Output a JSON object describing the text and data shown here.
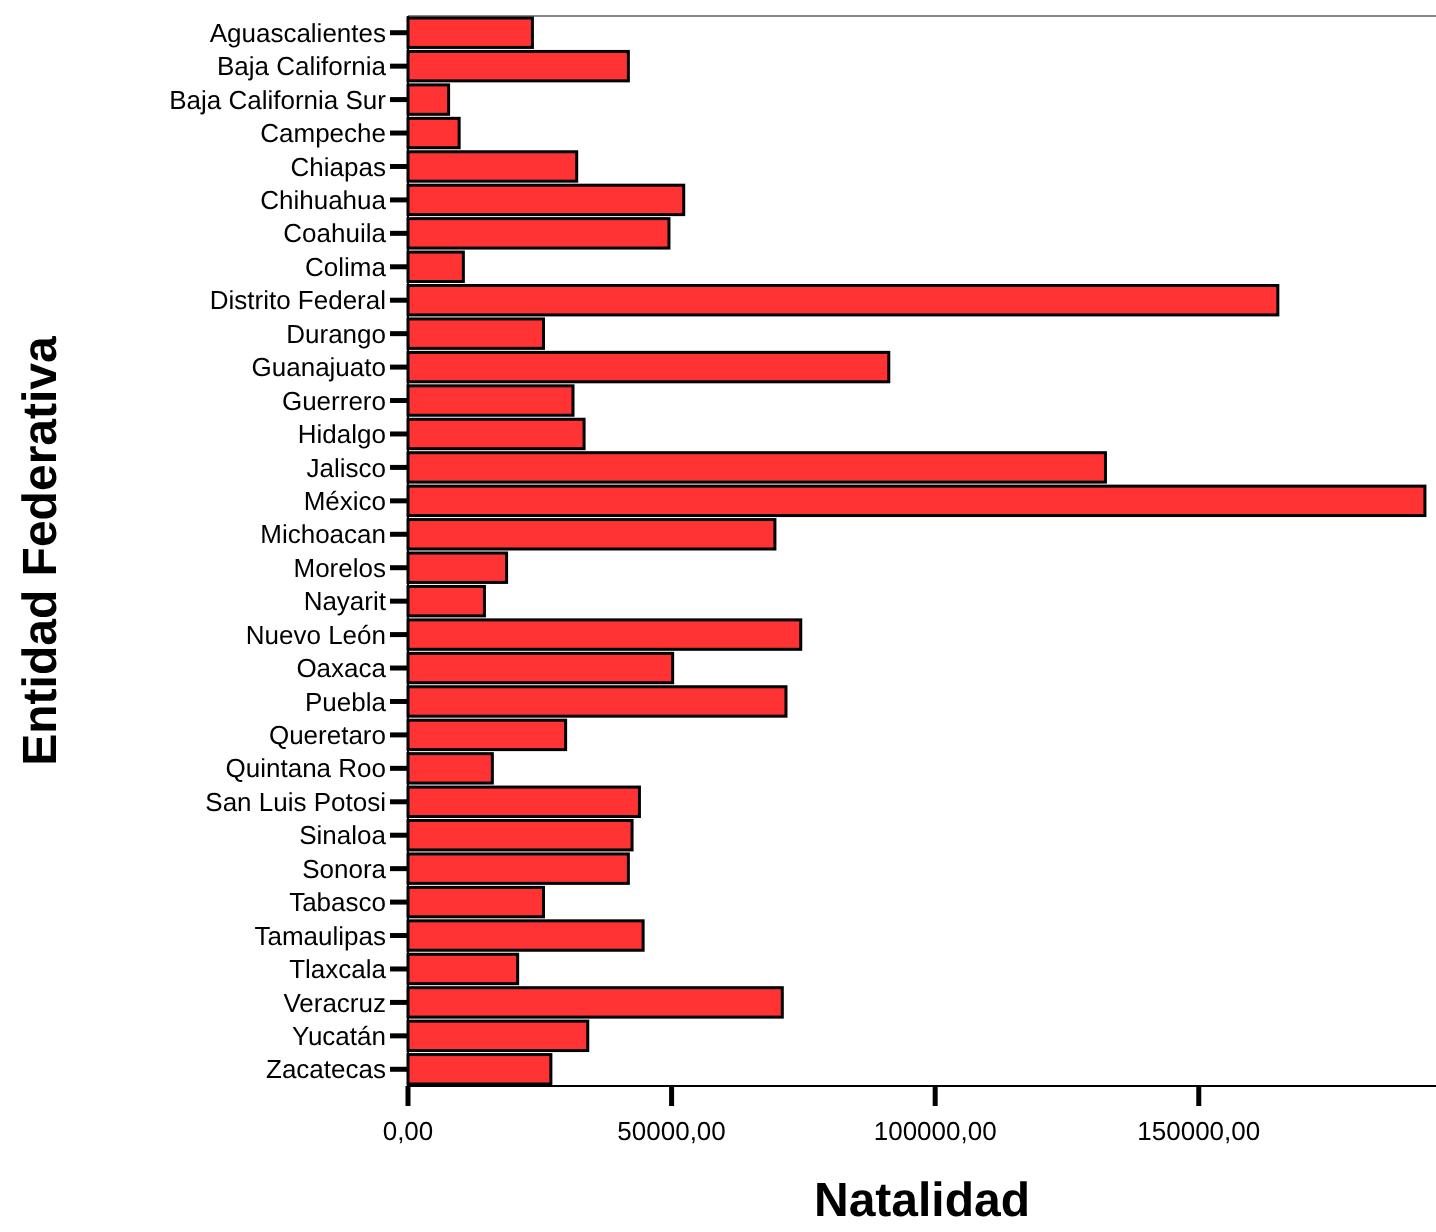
{
  "chart_data": {
    "type": "bar",
    "orientation": "horizontal",
    "xlabel": "Natalidad",
    "ylabel": "Entidad Federativa",
    "categories": [
      "Aguascalientes",
      "Baja California",
      "Baja California Sur",
      "Campeche",
      "Chiapas",
      "Chihuahua",
      "Coahuila",
      "Colima",
      "Distrito Federal",
      "Durango",
      "Guanajuato",
      "Guerrero",
      "Hidalgo",
      "Jalisco",
      "México",
      "Michoacan",
      "Morelos",
      "Nayarit",
      "Nuevo León",
      "Oaxaca",
      "Puebla",
      "Queretaro",
      "Quintana Roo",
      "San Luis Potosi",
      "Sinaloa",
      "Sonora",
      "Tabasco",
      "Tamaulipas",
      "Tlaxcala",
      "Veracruz",
      "Yucatán",
      "Zacatecas"
    ],
    "values": [
      23600,
      41800,
      7700,
      9700,
      32000,
      52300,
      49500,
      10500,
      165000,
      25700,
      91200,
      31300,
      33400,
      132300,
      192900,
      69600,
      18700,
      14500,
      74500,
      50200,
      71700,
      29900,
      16000,
      43900,
      42500,
      41800,
      25700,
      44600,
      20800,
      71000,
      34100,
      27100
    ],
    "color": "#ff3333",
    "xlim": [
      0,
      195000
    ],
    "xticks": [
      {
        "value": 0,
        "label": "0,00"
      },
      {
        "value": 50000,
        "label": "50000,00"
      },
      {
        "value": 100000,
        "label": "100000,00"
      },
      {
        "value": 150000,
        "label": "150000,00"
      }
    ],
    "grid": false
  }
}
